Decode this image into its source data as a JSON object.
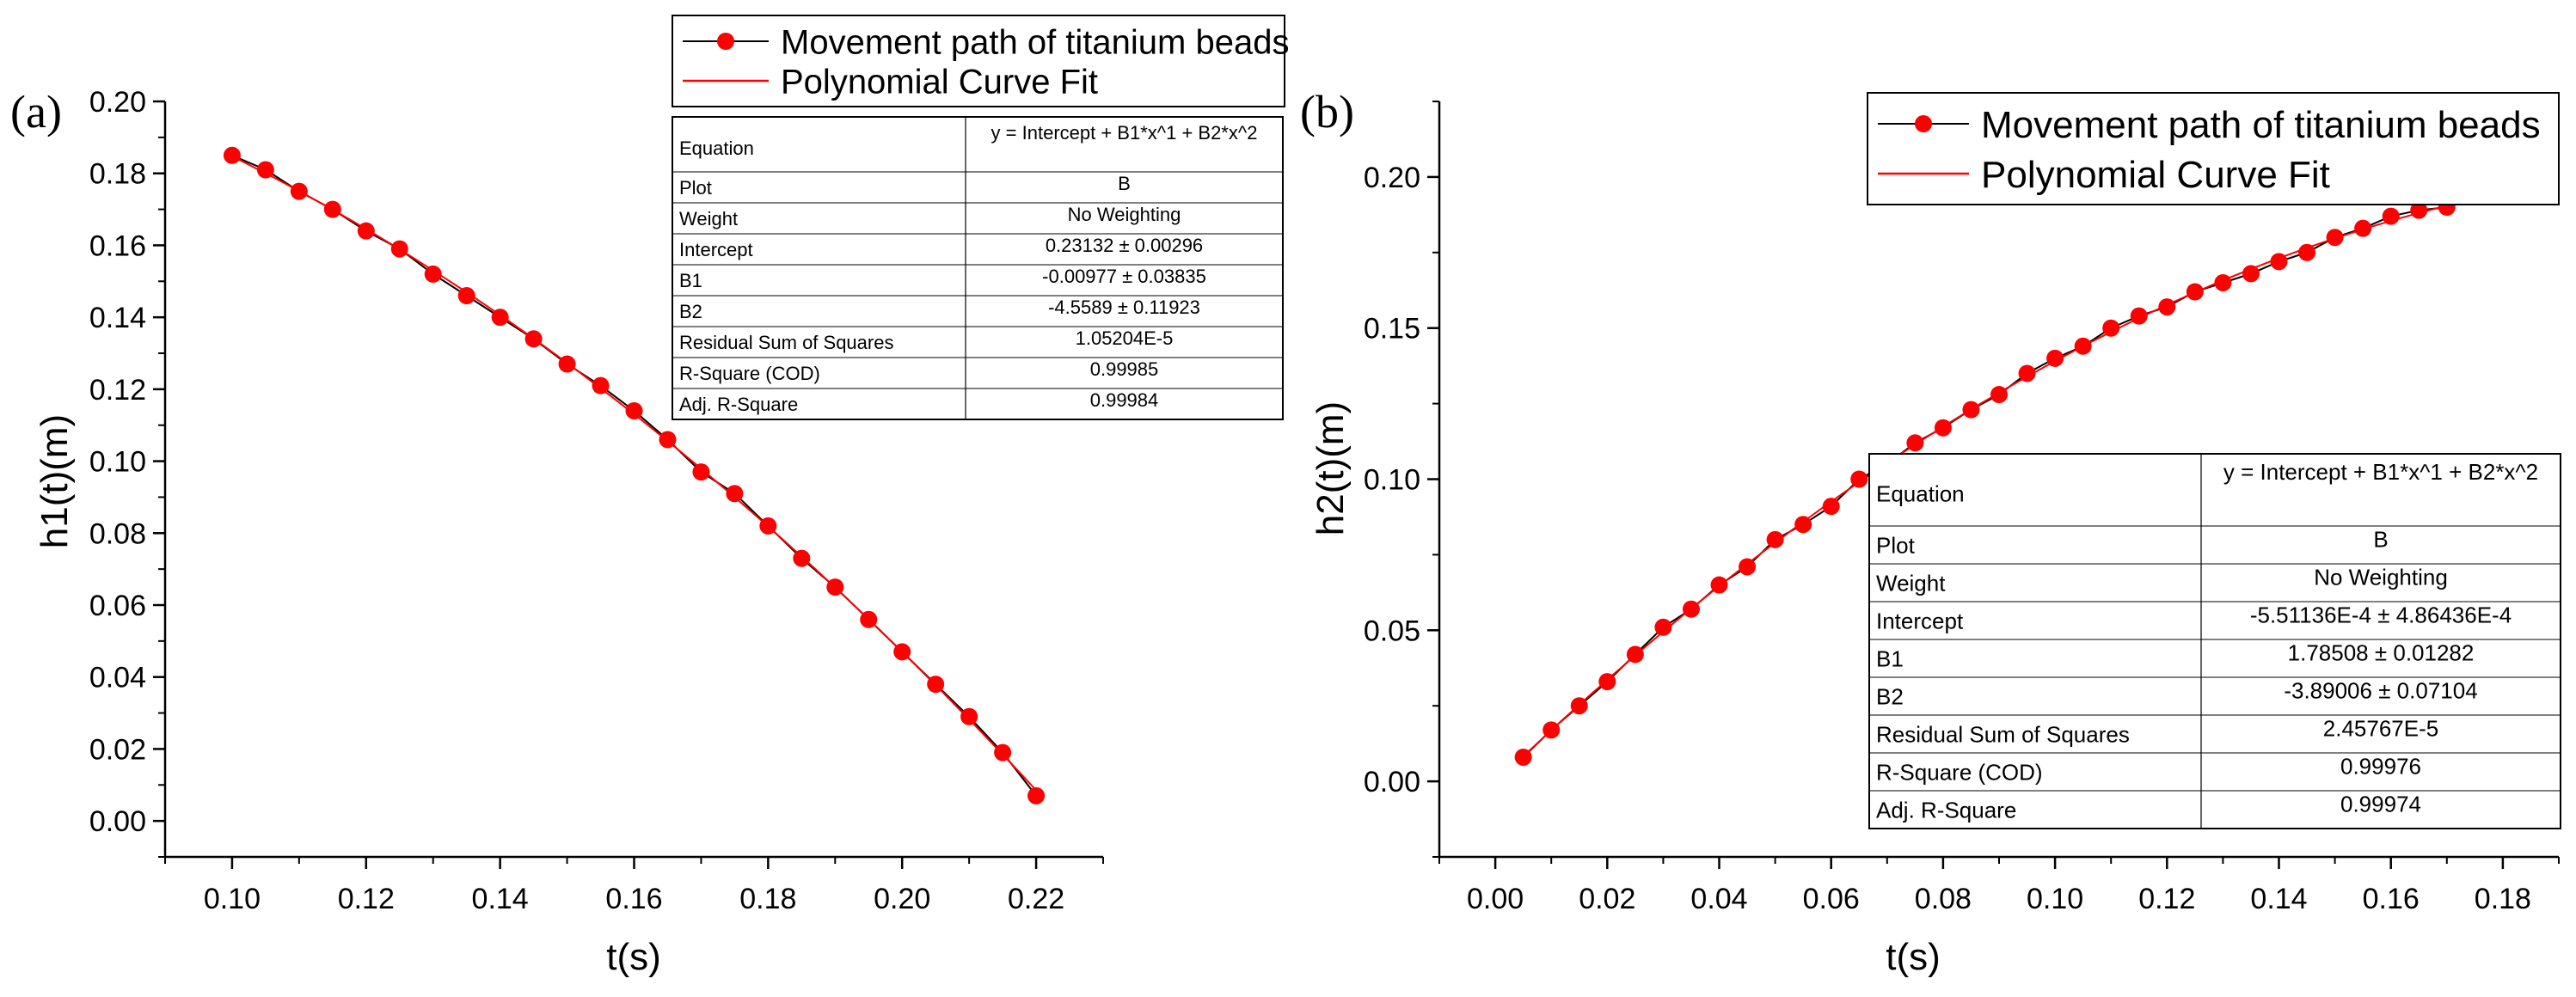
{
  "chart_data": [
    {
      "type": "scatter",
      "panel_label": "(a)",
      "xlabel": "t(s)",
      "ylabel": "h1(t)(m)",
      "xlim": [
        0.09,
        0.23
      ],
      "ylim": [
        -0.01,
        0.2
      ],
      "xticks": [
        "0.10",
        "0.12",
        "0.14",
        "0.16",
        "0.18",
        "0.20",
        "0.22"
      ],
      "yticks": [
        "0.00",
        "0.02",
        "0.04",
        "0.06",
        "0.08",
        "0.10",
        "0.12",
        "0.14",
        "0.16",
        "0.18",
        "0.20"
      ],
      "legend": {
        "position": "top-right",
        "entries": [
          "Movement path of titanium beads",
          "Polynomial Curve Fit"
        ]
      },
      "series": [
        {
          "name": "Movement path of titanium beads",
          "color": "#ff0000",
          "line_color": "#000000",
          "x": [
            0.1,
            0.105,
            0.11,
            0.115,
            0.12,
            0.125,
            0.13,
            0.135,
            0.14,
            0.145,
            0.15,
            0.155,
            0.16,
            0.165,
            0.17,
            0.175,
            0.18,
            0.185,
            0.19,
            0.195,
            0.2,
            0.205,
            0.21,
            0.215,
            0.22
          ],
          "y": [
            0.185,
            0.181,
            0.175,
            0.17,
            0.164,
            0.159,
            0.152,
            0.146,
            0.14,
            0.134,
            0.127,
            0.121,
            0.114,
            0.106,
            0.097,
            0.091,
            0.082,
            0.073,
            0.065,
            0.056,
            0.047,
            0.038,
            0.029,
            0.019,
            0.007
          ]
        },
        {
          "name": "Polynomial Curve Fit",
          "color": "#ff0000",
          "fit": {
            "intercept": 0.23132,
            "b1": -0.00977,
            "b2": -4.5589,
            "x_range": [
              0.1,
              0.22
            ]
          }
        }
      ],
      "fit_table": [
        [
          "Equation",
          "y = Intercept + B1*x^1 + B2*x^2"
        ],
        [
          "Plot",
          "B"
        ],
        [
          "Weight",
          "No Weighting"
        ],
        [
          "Intercept",
          "0.23132 ± 0.00296"
        ],
        [
          "B1",
          "-0.00977 ± 0.03835"
        ],
        [
          "B2",
          "-4.5589 ± 0.11923"
        ],
        [
          "Residual Sum of Squares",
          "1.05204E-5"
        ],
        [
          "R-Square (COD)",
          "0.99985"
        ],
        [
          "Adj. R-Square",
          "0.99984"
        ]
      ]
    },
    {
      "type": "scatter",
      "panel_label": "(b)",
      "xlabel": "t(s)",
      "ylabel": "h2(t)(m)",
      "xlim": [
        -0.01,
        0.19
      ],
      "ylim": [
        -0.025,
        0.225
      ],
      "xticks": [
        "0.00",
        "0.02",
        "0.04",
        "0.06",
        "0.08",
        "0.10",
        "0.12",
        "0.14",
        "0.16",
        "0.18"
      ],
      "yticks": [
        "0.00",
        "0.05",
        "0.10",
        "0.15",
        "0.20"
      ],
      "legend": {
        "position": "top-right",
        "entries": [
          "Movement path of titanium beads",
          "Polynomial Curve Fit"
        ]
      },
      "series": [
        {
          "name": "Movement path of titanium beads",
          "color": "#ff0000",
          "line_color": "#000000",
          "x": [
            0.005,
            0.01,
            0.015,
            0.02,
            0.025,
            0.03,
            0.035,
            0.04,
            0.045,
            0.05,
            0.055,
            0.06,
            0.065,
            0.07,
            0.075,
            0.08,
            0.085,
            0.09,
            0.095,
            0.1,
            0.105,
            0.11,
            0.115,
            0.12,
            0.125,
            0.13,
            0.135,
            0.14,
            0.145,
            0.15,
            0.155,
            0.16,
            0.165,
            0.17
          ],
          "y": [
            0.008,
            0.017,
            0.025,
            0.033,
            0.042,
            0.051,
            0.057,
            0.065,
            0.071,
            0.08,
            0.085,
            0.091,
            0.1,
            0.105,
            0.112,
            0.117,
            0.123,
            0.128,
            0.135,
            0.14,
            0.144,
            0.15,
            0.154,
            0.157,
            0.162,
            0.165,
            0.168,
            0.172,
            0.175,
            0.18,
            0.183,
            0.187,
            0.189,
            0.19
          ]
        },
        {
          "name": "Polynomial Curve Fit",
          "color": "#ff0000",
          "fit": {
            "intercept": -0.000551136,
            "b1": 1.78508,
            "b2": -3.89006,
            "x_range": [
              0.005,
              0.17
            ]
          }
        }
      ],
      "fit_table": [
        [
          "Equation",
          "y = Intercept + B1*x^1 + B2*x^2"
        ],
        [
          "Plot",
          "B"
        ],
        [
          "Weight",
          "No Weighting"
        ],
        [
          "Intercept",
          "-5.51136E-4 ± 4.86436E-4"
        ],
        [
          "B1",
          "1.78508 ± 0.01282"
        ],
        [
          "B2",
          "-3.89006 ± 0.07104"
        ],
        [
          "Residual Sum of Squares",
          "2.45767E-5"
        ],
        [
          "R-Square (COD)",
          "0.99976"
        ],
        [
          "Adj. R-Square",
          "0.99974"
        ]
      ]
    }
  ]
}
